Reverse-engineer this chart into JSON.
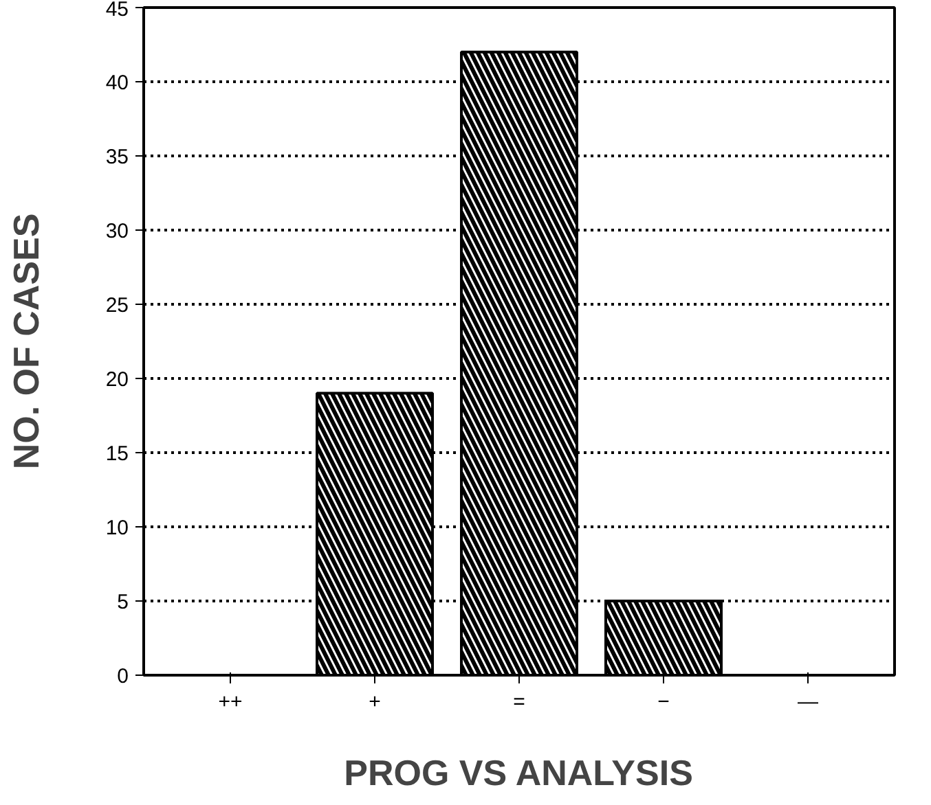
{
  "chart_data": {
    "type": "bar",
    "xlabel": "PROG VS ANALYSIS",
    "ylabel": "NO. OF CASES",
    "categories": [
      "++",
      "+",
      "=",
      "−",
      "—"
    ],
    "values": [
      0,
      19,
      42,
      5,
      0
    ],
    "color": "#000000",
    "ylim": [
      0,
      45
    ],
    "yticks": [
      0,
      5,
      10,
      15,
      20,
      25,
      30,
      35,
      40,
      45
    ],
    "grid": "y"
  }
}
